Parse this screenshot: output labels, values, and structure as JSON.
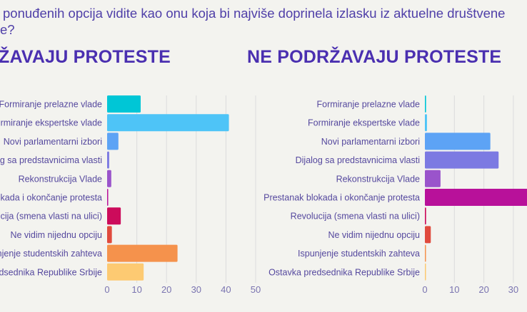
{
  "question": {
    "line1": "ponuđenih opcija vidite kao onu koja bi najviše doprinela izlasku iz aktuelne društvene",
    "line2": "e?"
  },
  "chart_data": [
    {
      "type": "bar",
      "orientation": "horizontal",
      "title": "ŽAVAJU PROTESTE",
      "categories": [
        "Formiranje prelazne vlade",
        "Formiranje ekspertske vlade",
        "Novi parlamentarni izbori",
        "Dijalog sa predstavnicima vlasti",
        "Rekonstrukcija Vlade",
        "Prestanak blokada i okončanje protesta",
        "Revolucija (smena vlasti na ulici)",
        "Ne vidim nijednu opciju",
        "Ispunjenje studentskih zahteva",
        "Ostavka predsednika Republike Srbije"
      ],
      "values": [
        11.3,
        41,
        3.8,
        0.7,
        1.4,
        0.2,
        4.6,
        1.6,
        23.7,
        12.3
      ],
      "colors": [
        "#00c6d6",
        "#4ec4f7",
        "#5da3f5",
        "#7c7ae2",
        "#9a54cb",
        "#b8119a",
        "#cc0b5b",
        "#e04a3d",
        "#f5924c",
        "#fdca72"
      ],
      "xlim": [
        0,
        50
      ],
      "xticks": [
        "0",
        "10",
        "20",
        "30",
        "40",
        "50"
      ],
      "grid": true
    },
    {
      "type": "bar",
      "orientation": "horizontal",
      "title": "NE PODRŽAVAJU PROTESTE",
      "categories": [
        "Formiranje prelazne vlade",
        "Formiranje ekspertske vlade",
        "Novi parlamentarni izbori",
        "Dijalog sa predstavnicima vlasti",
        "Rekonstrukcija Vlade",
        "Prestanak blokada i okončanje protesta",
        "Revolucija (smena vlasti na ulici)",
        "Ne vidim nijednu opciju",
        "Ispunjenje studentskih zahteva",
        "Ostavka predsednika Republike Srbije"
      ],
      "values": [
        0.4,
        0.7,
        22.2,
        25,
        5.3,
        36,
        0.4,
        2,
        0.3,
        0.3
      ],
      "colors": [
        "#00c6d6",
        "#4ec4f7",
        "#5da3f5",
        "#7c7ae2",
        "#9a54cb",
        "#b8119a",
        "#cc0b5b",
        "#e04a3d",
        "#f5924c",
        "#fdca72"
      ],
      "xlim": [
        0,
        50
      ],
      "xticks": [
        "0",
        "10",
        "20",
        "30"
      ],
      "grid": true
    }
  ]
}
